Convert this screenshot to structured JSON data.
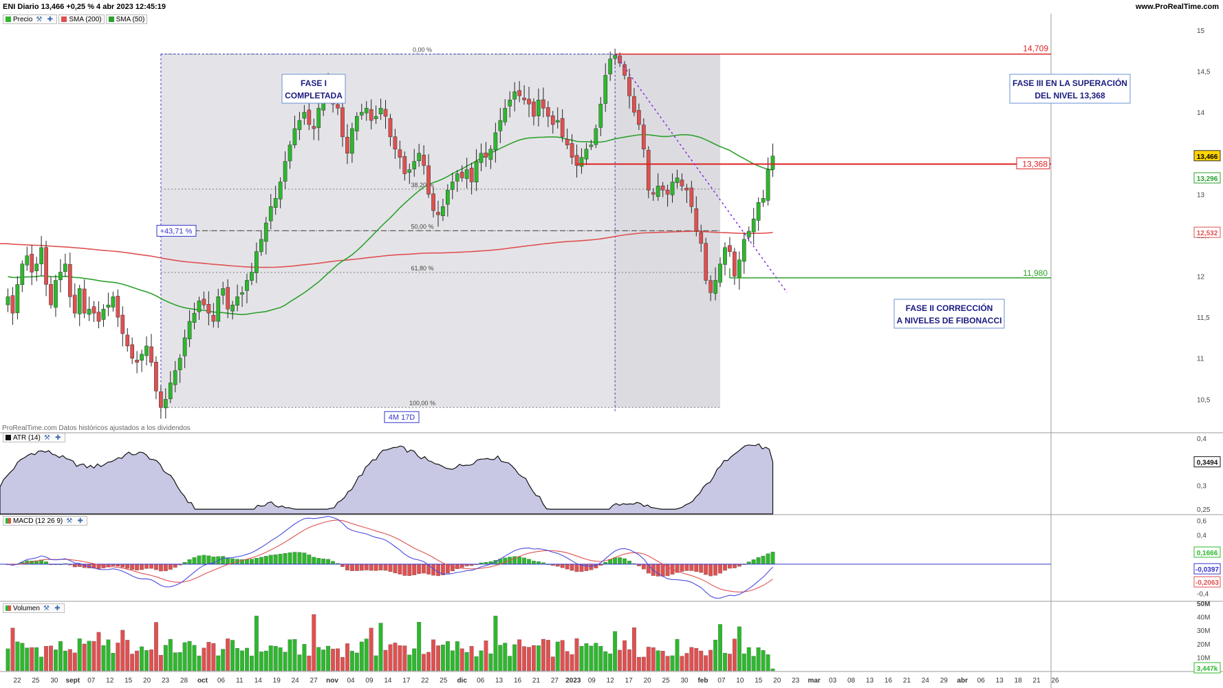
{
  "header": {
    "title": "ENI Diario 13,466 +0,25 % 4 abr 2023 12:45:19",
    "brand": "www.ProRealTime.com"
  },
  "legends": {
    "price": "Precio",
    "sma200": "SMA (200)",
    "sma50": "SMA (50)",
    "atr": "ATR (14)",
    "macd": "MACD (12 26 9)",
    "volume": "Volumen",
    "source_note": "ProRealTime.com  Datos históricos ajustados a los dividendos"
  },
  "annotations": {
    "phase1": [
      "FASE I",
      "COMPLETADA"
    ],
    "phase2": [
      "FASE II CORRECCIÓN",
      "A NIVELES DE FIBONACCI"
    ],
    "phase3": [
      "FASE III EN LA SUPERACIÓN",
      "DEL NIVEL 13,368"
    ],
    "gain": "+43,71 %",
    "duration": "4M 17D",
    "fib_levels": [
      "0,00 %",
      "38,20 %",
      "50,00 %",
      "61,80 %",
      "100,00 %"
    ],
    "level_high": "14,709",
    "level_break": "13,368",
    "level_low": "11,980"
  },
  "price_badges": {
    "last": "13,466",
    "sma50": "13,296",
    "sma200": "12,532",
    "atr": "0,3494",
    "macd": "0,1666",
    "macd_line": "-0,0397",
    "signal_line": "-0,2063",
    "volume": "3,447k"
  },
  "colors": {
    "up": "#2db82d",
    "down": "#e05050",
    "sma200": "#e05050",
    "sma50": "#2ca02c",
    "atr_fill": "#9a9ad0",
    "macd_line": "#4a4ae0",
    "signal_line": "#e05050",
    "box_text": "#1a1a80"
  },
  "chart_data": [
    {
      "type": "candlestick",
      "title": "ENI Diario",
      "x_tick_labels": [
        "22",
        "25",
        "30",
        "sept",
        "07",
        "12",
        "15",
        "20",
        "23",
        "28",
        "oct",
        "06",
        "11",
        "14",
        "19",
        "24",
        "27",
        "nov",
        "04",
        "09",
        "14",
        "17",
        "22",
        "25",
        "dic",
        "06",
        "13",
        "16",
        "21",
        "27",
        "2023",
        "09",
        "12",
        "17",
        "20",
        "25",
        "30",
        "feb",
        "07",
        "10",
        "15",
        "20",
        "23",
        "mar",
        "03",
        "08",
        "13",
        "16",
        "21",
        "24",
        "29",
        "abr",
        "06",
        "13",
        "18",
        "21",
        "26"
      ],
      "y_ticks": [
        10.5,
        11,
        11.5,
        12,
        12.5,
        13,
        13.5,
        14,
        14.5,
        15
      ],
      "y_tick_labels": [
        "10,5",
        "11",
        "11,5",
        "12",
        "12,5",
        "13",
        "13,5",
        "14",
        "14,5",
        "15"
      ],
      "ylim": [
        10.1,
        15.1
      ],
      "close": [
        11.75,
        11.55,
        11.9,
        12.15,
        12.25,
        12.05,
        12.15,
        12.35,
        11.9,
        11.65,
        11.95,
        12.05,
        12.15,
        11.75,
        11.55,
        11.85,
        11.55,
        11.6,
        11.55,
        11.45,
        11.6,
        11.65,
        11.75,
        11.5,
        11.3,
        11.15,
        11.0,
        10.95,
        11.05,
        11.15,
        10.95,
        10.6,
        10.4,
        10.5,
        10.7,
        10.85,
        11.0,
        11.25,
        11.45,
        11.55,
        11.7,
        11.65,
        11.55,
        11.45,
        11.75,
        11.85,
        11.6,
        11.65,
        11.75,
        11.8,
        11.95,
        12.05,
        12.3,
        12.45,
        12.65,
        12.85,
        12.95,
        13.15,
        13.4,
        13.6,
        13.8,
        13.9,
        14.0,
        13.85,
        13.8,
        14.05,
        14.2,
        14.35,
        14.1,
        14.05,
        13.7,
        13.5,
        13.8,
        13.95,
        14.0,
        14.05,
        13.9,
        13.95,
        14.05,
        13.95,
        13.7,
        13.55,
        13.45,
        13.25,
        13.3,
        13.4,
        13.5,
        13.35,
        13.0,
        12.8,
        12.75,
        12.85,
        13.05,
        13.15,
        13.25,
        13.2,
        13.3,
        13.15,
        13.4,
        13.5,
        13.45,
        13.55,
        13.75,
        13.9,
        14.05,
        14.15,
        14.25,
        14.2,
        14.15,
        14.1,
        13.95,
        14.15,
        14.05,
        13.95,
        13.85,
        13.9,
        13.7,
        13.6,
        13.45,
        13.35,
        13.45,
        13.55,
        13.6,
        13.8,
        14.1,
        14.45,
        14.65,
        14.7,
        14.6,
        14.45,
        14.2,
        14.0,
        13.85,
        13.55,
        13.05,
        13.0,
        13.1,
        13.05,
        13.0,
        13.15,
        13.2,
        13.1,
        13.05,
        12.85,
        12.55,
        12.4,
        11.95,
        11.8,
        11.95,
        12.15,
        12.35,
        12.3,
        12.0,
        12.2,
        12.45,
        12.55,
        12.7,
        12.9,
        12.95,
        13.3,
        13.466
      ],
      "series": [
        {
          "name": "SMA (200)",
          "last": 12.532
        },
        {
          "name": "SMA (50)",
          "last": 13.296
        }
      ],
      "horizontal_levels": {
        "high": 14.709,
        "break": 13.368,
        "low": 11.98
      },
      "fibonacci": {
        "from": 10.4,
        "to": 14.709,
        "levels_pct": [
          0,
          38.2,
          50,
          61.8,
          100
        ]
      }
    },
    {
      "type": "area",
      "title": "ATR (14)",
      "y_tick_labels": [
        "0,25",
        "0,3",
        "0,35",
        "0,4"
      ],
      "ylim": [
        0.24,
        0.41
      ],
      "last": 0.3494
    },
    {
      "type": "bar",
      "title": "MACD (12 26 9)",
      "y_tick_labels": [
        "-0,4",
        "-0,2",
        "0,2",
        "0,4",
        "0,6"
      ],
      "ylim": [
        -0.5,
        0.65
      ],
      "series": [
        {
          "name": "MACD",
          "last": -0.0397
        },
        {
          "name": "Signal",
          "last": -0.2063
        },
        {
          "name": "Histogram",
          "last": 0.1666
        }
      ]
    },
    {
      "type": "bar",
      "title": "Volumen",
      "y_tick_labels": [
        "10M",
        "20M",
        "30M",
        "40M",
        "50M"
      ],
      "ylim": [
        0,
        50
      ],
      "last_label": "3,447k"
    }
  ]
}
